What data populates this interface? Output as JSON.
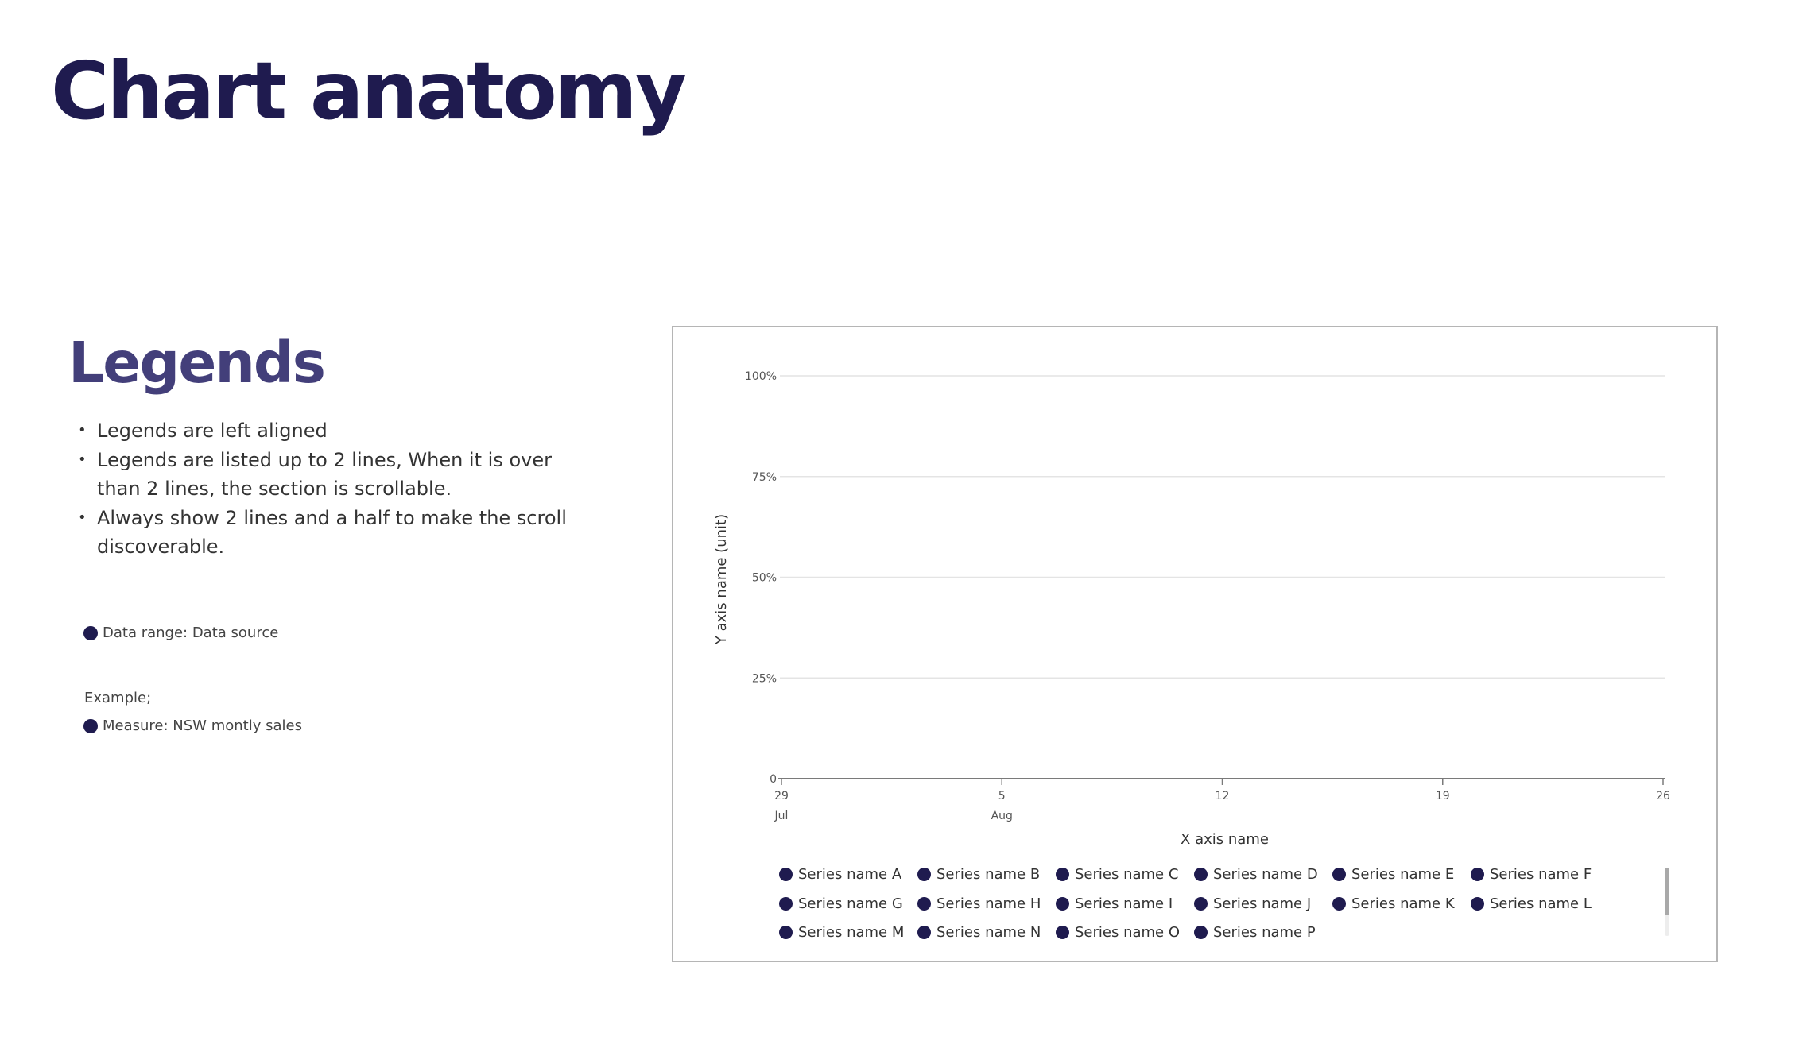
{
  "page": {
    "title": "Chart anatomy",
    "section_title": "Legends",
    "bullets": [
      "Legends are left aligned",
      "Legends are listed up to 2 lines, When it is over than 2 lines, the section is scrollable.",
      "Always show 2 lines and a half to make the scroll discoverable."
    ],
    "data_range_label": "Data range: Data source",
    "example_label": "Example;",
    "measure_label": "Measure: NSW montly sales"
  },
  "colors": {
    "title": "#1f1b4f",
    "section_title": "#433f7a",
    "series": "#1f1b4f",
    "gridline": "#e4e4e4",
    "axis": "#7a7a7a"
  },
  "chart_data": {
    "type": "line",
    "title": "",
    "xlabel": "X axis name",
    "ylabel": "Y axis name (unit)",
    "ylim": [
      0,
      100
    ],
    "y_ticks": [
      {
        "value": 0,
        "label": "0"
      },
      {
        "value": 25,
        "label": "25%"
      },
      {
        "value": 50,
        "label": "50%"
      },
      {
        "value": 75,
        "label": "75%"
      },
      {
        "value": 100,
        "label": "100%"
      }
    ],
    "x_range": [
      "2024-07-29",
      "2024-08-26"
    ],
    "x_ticks": [
      {
        "date": "2024-07-29",
        "label": "29",
        "sublabel": "Jul"
      },
      {
        "date": "2024-08-05",
        "label": "5",
        "sublabel": "Aug"
      },
      {
        "date": "2024-08-12",
        "label": "12",
        "sublabel": ""
      },
      {
        "date": "2024-08-19",
        "label": "19",
        "sublabel": ""
      },
      {
        "date": "2024-08-26",
        "label": "26",
        "sublabel": ""
      }
    ],
    "grid": true,
    "legend_placement": "bottom",
    "legend_scrollable": true,
    "series": [
      {
        "name": "Series name A",
        "values": []
      },
      {
        "name": "Series name B",
        "values": []
      },
      {
        "name": "Series name C",
        "values": []
      },
      {
        "name": "Series name D",
        "values": []
      },
      {
        "name": "Series name E",
        "values": []
      },
      {
        "name": "Series name F",
        "values": []
      },
      {
        "name": "Series name G",
        "values": []
      },
      {
        "name": "Series name H",
        "values": []
      },
      {
        "name": "Series name I",
        "values": []
      },
      {
        "name": "Series name J",
        "values": []
      },
      {
        "name": "Series name K",
        "values": []
      },
      {
        "name": "Series name L",
        "values": []
      },
      {
        "name": "Series name M",
        "values": []
      },
      {
        "name": "Series name N",
        "values": []
      },
      {
        "name": "Series name O",
        "values": []
      },
      {
        "name": "Series name P",
        "values": []
      }
    ]
  }
}
